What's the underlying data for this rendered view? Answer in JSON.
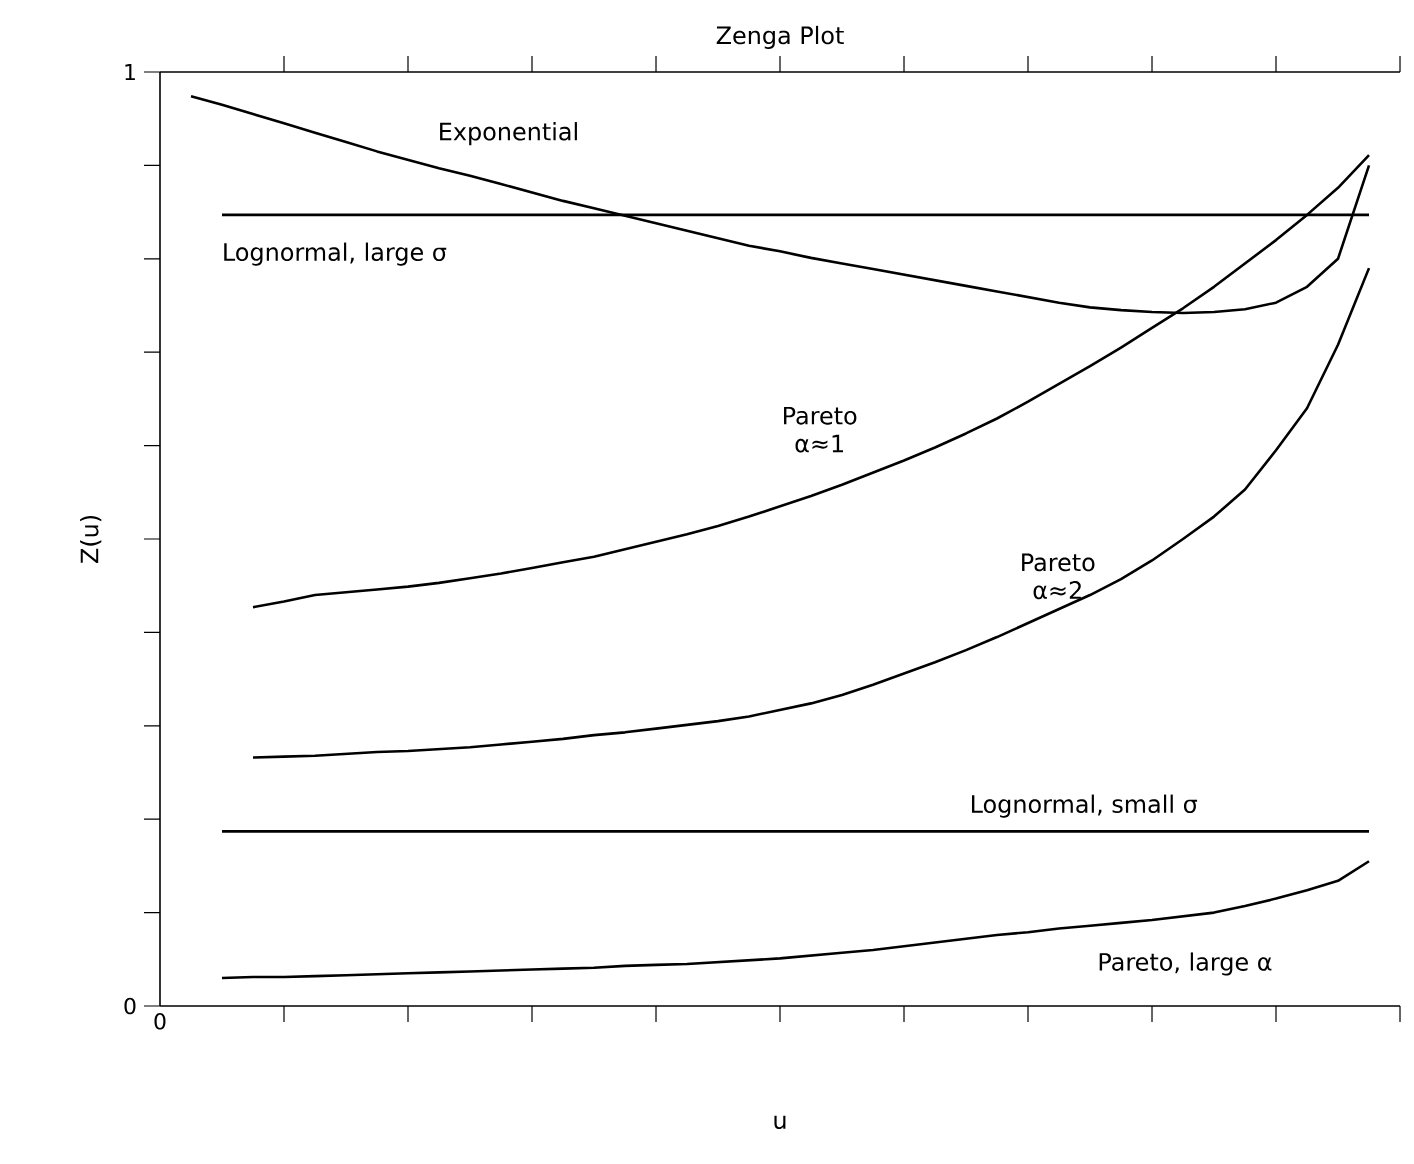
{
  "chart_data": {
    "type": "line",
    "title": "Zenga Plot",
    "xlabel": "u",
    "ylabel": "Z(u)",
    "categories": [
      "0",
      null,
      null,
      null,
      null,
      null,
      null,
      null,
      null,
      null,
      null,
      null,
      null,
      null,
      null,
      null,
      null,
      null,
      null,
      null,
      null,
      null,
      null,
      null,
      null,
      null,
      null,
      null,
      null,
      null,
      null,
      null,
      null,
      null,
      null,
      null,
      null,
      null,
      null,
      null,
      null
    ],
    "ylim": [
      0,
      1
    ],
    "yticks": [
      {
        "value": 0,
        "label": "0"
      },
      {
        "value": 0.1,
        "label": null
      },
      {
        "value": 0.2,
        "label": null
      },
      {
        "value": 0.3,
        "label": null
      },
      {
        "value": 0.4,
        "label": null
      },
      {
        "value": 0.5,
        "label": null
      },
      {
        "value": 0.6,
        "label": null
      },
      {
        "value": 0.7,
        "label": null
      },
      {
        "value": 0.8,
        "label": null
      },
      {
        "value": 0.9,
        "label": null
      },
      {
        "value": 1,
        "label": "1"
      }
    ],
    "grid": false,
    "marker": "none",
    "line_style": "solid",
    "series": [
      {
        "name": "Exponential",
        "color": "#000000",
        "values": [
          null,
          0.974,
          0.965,
          0.955,
          0.945,
          0.935,
          0.925,
          0.915,
          0.906,
          0.897,
          0.889,
          0.88,
          0.871,
          0.862,
          0.854,
          0.846,
          0.838,
          0.83,
          0.822,
          0.814,
          0.808,
          0.801,
          0.795,
          0.789,
          0.783,
          0.777,
          0.771,
          0.765,
          0.759,
          0.753,
          0.748,
          0.745,
          0.743,
          0.742,
          0.743,
          0.746,
          0.753,
          0.77,
          0.8,
          0.9,
          null
        ]
      },
      {
        "name": "Lognormal, large σ",
        "color": "#000000",
        "values": [
          null,
          null,
          0.847,
          0.847,
          0.847,
          0.847,
          0.847,
          0.847,
          0.847,
          0.847,
          0.847,
          0.847,
          0.847,
          0.847,
          0.847,
          0.847,
          0.847,
          0.847,
          0.847,
          0.847,
          0.847,
          0.847,
          0.847,
          0.847,
          0.847,
          0.847,
          0.847,
          0.847,
          0.847,
          0.847,
          0.847,
          0.847,
          0.847,
          0.847,
          0.847,
          0.847,
          0.847,
          0.847,
          0.847,
          0.847,
          null
        ]
      },
      {
        "name": "Pareto α≈1",
        "color": "#000000",
        "values": [
          null,
          null,
          null,
          0.427,
          0.433,
          0.44,
          0.443,
          0.446,
          0.449,
          0.453,
          0.458,
          0.463,
          0.469,
          0.475,
          0.481,
          0.489,
          0.497,
          0.505,
          0.514,
          0.524,
          0.535,
          0.546,
          0.558,
          0.571,
          0.584,
          0.598,
          0.613,
          0.629,
          0.647,
          0.666,
          0.685,
          0.705,
          0.726,
          0.747,
          0.77,
          0.795,
          0.82,
          0.847,
          0.876,
          0.911,
          null
        ]
      },
      {
        "name": "Pareto α≈2",
        "color": "#000000",
        "values": [
          null,
          null,
          null,
          0.266,
          0.267,
          0.268,
          0.27,
          0.272,
          0.273,
          0.275,
          0.277,
          0.28,
          0.283,
          0.286,
          0.29,
          0.293,
          0.297,
          0.301,
          0.305,
          0.31,
          0.317,
          0.324,
          0.333,
          0.344,
          0.356,
          0.368,
          0.381,
          0.395,
          0.41,
          0.425,
          0.44,
          0.457,
          0.477,
          0.5,
          0.524,
          0.553,
          0.595,
          0.64,
          0.708,
          0.79,
          null
        ]
      },
      {
        "name": "Lognormal, small σ",
        "color": "#000000",
        "values": [
          null,
          null,
          0.187,
          0.187,
          0.187,
          0.187,
          0.187,
          0.187,
          0.187,
          0.187,
          0.187,
          0.187,
          0.187,
          0.187,
          0.187,
          0.187,
          0.187,
          0.187,
          0.187,
          0.187,
          0.187,
          0.187,
          0.187,
          0.187,
          0.187,
          0.187,
          0.187,
          0.187,
          0.187,
          0.187,
          0.187,
          0.187,
          0.187,
          0.187,
          0.187,
          0.187,
          0.187,
          0.187,
          0.187,
          0.187,
          null
        ]
      },
      {
        "name": "Pareto, large α",
        "color": "#000000",
        "values": [
          null,
          null,
          0.03,
          0.031,
          0.031,
          0.032,
          0.033,
          0.034,
          0.035,
          0.036,
          0.037,
          0.038,
          0.039,
          0.04,
          0.041,
          0.043,
          0.044,
          0.045,
          0.047,
          0.049,
          0.051,
          0.054,
          0.057,
          0.06,
          0.064,
          0.068,
          0.072,
          0.076,
          0.079,
          0.083,
          0.086,
          0.089,
          0.092,
          0.096,
          0.1,
          0.107,
          0.115,
          0.124,
          0.134,
          0.155,
          null
        ]
      }
    ]
  }
}
